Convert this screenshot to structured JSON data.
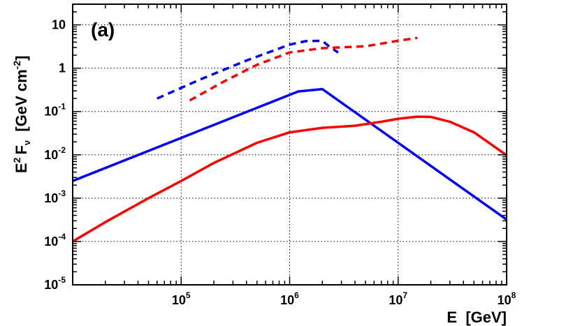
{
  "chart_data": {
    "type": "line",
    "panel_label": "(a)",
    "xlabel": "E  [GeV]",
    "ylabel_parts": {
      "e": "E",
      "e_exp": "2",
      "f": "F",
      "f_sub": "ν",
      "unit_a": "  [GeV cm",
      "unit_exp": "-2",
      "unit_b": "]"
    },
    "x_scale": "log",
    "y_scale": "log",
    "xlim": [
      10000,
      100000000
    ],
    "ylim": [
      1e-05,
      30
    ],
    "grid": true,
    "x_ticks": [
      {
        "value": 100000,
        "base": "10",
        "exp": "5"
      },
      {
        "value": 1000000,
        "base": "10",
        "exp": "6"
      },
      {
        "value": 10000000,
        "base": "10",
        "exp": "7"
      },
      {
        "value": 100000000,
        "base": "10",
        "exp": "8"
      }
    ],
    "y_ticks": [
      {
        "value": 1e-05,
        "base": "10",
        "exp": "-5"
      },
      {
        "value": 0.0001,
        "base": "10",
        "exp": "-4"
      },
      {
        "value": 0.001,
        "base": "10",
        "exp": "-3"
      },
      {
        "value": 0.01,
        "base": "10",
        "exp": "-2"
      },
      {
        "value": 0.1,
        "base": "10",
        "exp": "-1"
      },
      {
        "value": 1,
        "base": "1",
        "exp": ""
      },
      {
        "value": 10,
        "base": "10",
        "exp": ""
      }
    ],
    "series": [
      {
        "color": "#0000ff",
        "style": "solid",
        "x": [
          10000,
          1200000,
          2000000,
          100000000
        ],
        "y": [
          0.0025,
          0.29,
          0.33,
          0.00032
        ]
      },
      {
        "color": "#ff0000",
        "style": "solid",
        "x": [
          10000,
          20000,
          50000,
          100000,
          200000,
          500000,
          1000000,
          2000000,
          4000000,
          7000000,
          10000000,
          15000000,
          20000000,
          30000000,
          50000000,
          100000000
        ],
        "y": [
          0.0001,
          0.00028,
          0.001,
          0.0025,
          0.0065,
          0.019,
          0.033,
          0.042,
          0.047,
          0.058,
          0.068,
          0.076,
          0.075,
          0.058,
          0.033,
          0.0098
        ]
      },
      {
        "color": "#0000ff",
        "style": "dashed",
        "x": [
          60000,
          150000,
          400000,
          1000000,
          1400000,
          2000000,
          2300000,
          2800000
        ],
        "y": [
          0.2,
          0.55,
          1.5,
          3.5,
          4.2,
          4.3,
          3.2,
          2.3
        ]
      },
      {
        "color": "#ff0000",
        "style": "dashed",
        "x": [
          120000,
          250000,
          500000,
          1000000,
          2000000,
          5000000,
          10000000,
          15000000
        ],
        "y": [
          0.18,
          0.5,
          1.2,
          2.3,
          2.9,
          3.2,
          4.3,
          5.0
        ]
      }
    ]
  }
}
